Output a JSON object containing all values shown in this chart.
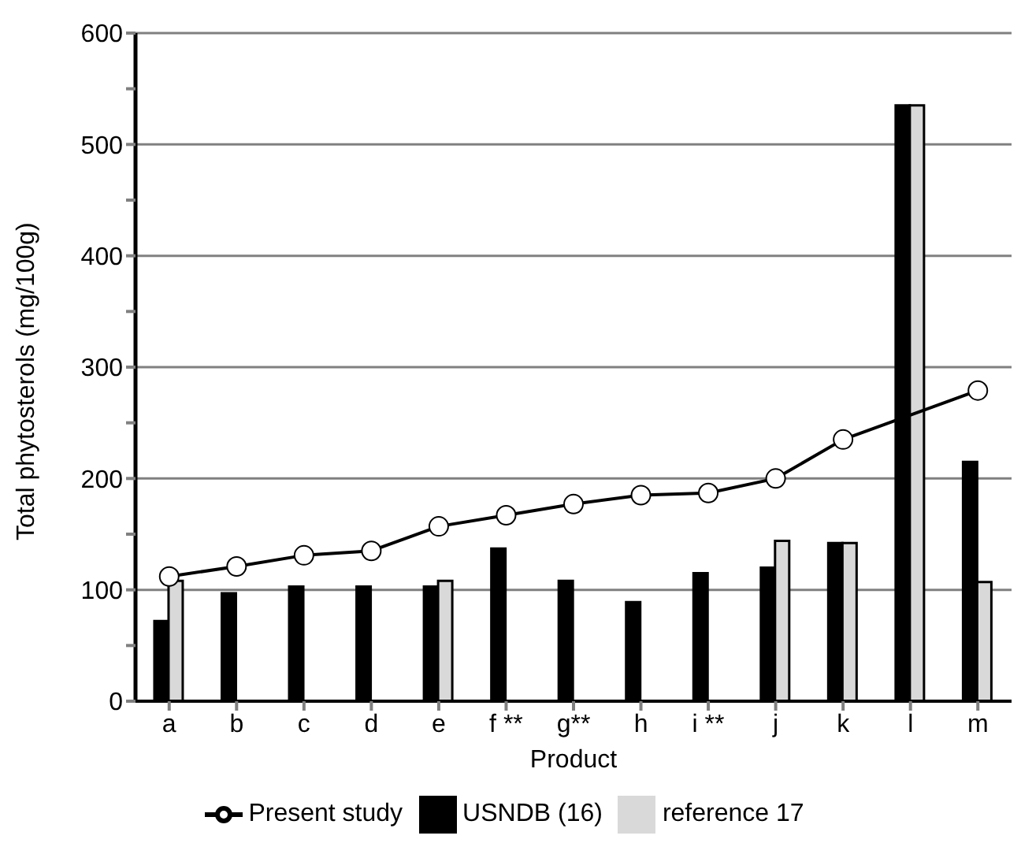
{
  "chart_data": {
    "type": "bar",
    "xlabel": "Product",
    "ylabel": "Total phytosterols (mg/100g)",
    "categories": [
      "a",
      "b",
      "c",
      "d",
      "e",
      "f **",
      "g**",
      "h",
      "i **",
      "j",
      "k",
      "l",
      "m"
    ],
    "series": [
      {
        "name": "Present study",
        "type": "line",
        "color": "#000000",
        "marker": "circle",
        "values": [
          112,
          121,
          131,
          135,
          157,
          167,
          177,
          185,
          187,
          200,
          235,
          null,
          279
        ]
      },
      {
        "name": "USNDB (16)",
        "color": "#000000",
        "values": [
          72,
          97,
          103,
          103,
          103,
          137,
          108,
          89,
          115,
          120,
          142,
          535,
          215
        ]
      },
      {
        "name": "reference 17",
        "color": "#d9d9d9",
        "values": [
          108,
          null,
          null,
          null,
          108,
          null,
          null,
          null,
          null,
          144,
          142,
          535,
          107
        ]
      }
    ],
    "ylim": [
      0,
      600
    ],
    "yticks": [
      0,
      {
        "value": 50,
        "label": null
      },
      100,
      {
        "value": 150,
        "label": null
      },
      200,
      {
        "value": 250,
        "label": null
      },
      300,
      {
        "value": 350,
        "label": null
      },
      400,
      {
        "value": 450,
        "label": null
      },
      500,
      {
        "value": 550,
        "label": null
      },
      600
    ],
    "grid": "y",
    "legend": "bottom"
  }
}
